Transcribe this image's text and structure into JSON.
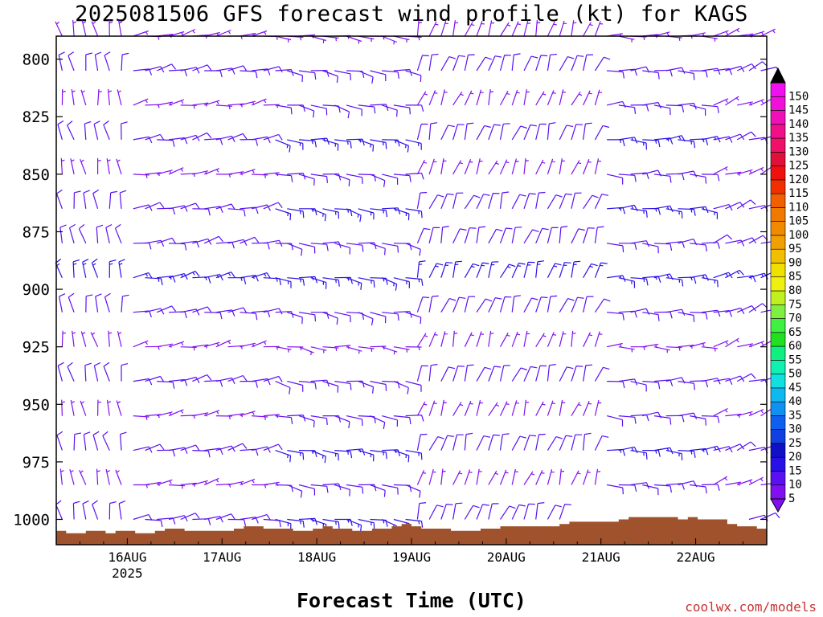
{
  "title": "2025081506 GFS forecast wind profile (kt) for KAGS",
  "credit": "coolwx.com/models",
  "chart_data": {
    "type": "wind-barb time-height section",
    "title": "2025081506 GFS forecast wind profile (kt) for KAGS",
    "xlabel": "Forecast Time (UTC)",
    "ylabel": "",
    "x_ticks": [
      {
        "label": "16AUG",
        "sub": "2025",
        "hour": 18
      },
      {
        "label": "17AUG",
        "sub": "",
        "hour": 42
      },
      {
        "label": "18AUG",
        "sub": "",
        "hour": 66
      },
      {
        "label": "19AUG",
        "sub": "",
        "hour": 90
      },
      {
        "label": "20AUG",
        "sub": "",
        "hour": 114
      },
      {
        "label": "21AUG",
        "sub": "",
        "hour": 138
      },
      {
        "label": "22AUG",
        "sub": "",
        "hour": 162
      }
    ],
    "x_range_hours": [
      0,
      180
    ],
    "y_ticks": [
      800,
      825,
      850,
      875,
      900,
      925,
      950,
      975,
      1000
    ],
    "y_range_hPa": [
      790,
      1011
    ],
    "pressure_levels_hPa": [
      790,
      805,
      820,
      835,
      850,
      865,
      880,
      895,
      910,
      925,
      940,
      955,
      970,
      985,
      1000
    ],
    "time_step_hours": 3,
    "colorbar": {
      "values": [
        5,
        10,
        15,
        20,
        25,
        30,
        35,
        40,
        45,
        50,
        55,
        60,
        65,
        70,
        75,
        80,
        85,
        90,
        95,
        100,
        105,
        110,
        115,
        120,
        125,
        130,
        135,
        140,
        145,
        150
      ],
      "colors": [
        "#8010f0",
        "#5a10f0",
        "#2a10e8",
        "#1010c8",
        "#1040e0",
        "#1060f0",
        "#1090f0",
        "#10b8f0",
        "#10e0e0",
        "#10f0b0",
        "#10f080",
        "#20e020",
        "#40f040",
        "#80f040",
        "#c0f020",
        "#f0f010",
        "#f0e000",
        "#f0c000",
        "#f0a000",
        "#f08a00",
        "#f07a00",
        "#f06000",
        "#f03000",
        "#f01010",
        "#e0103a",
        "#f0106a",
        "#f0108a",
        "#f010b8",
        "#f010d8",
        "#f010f0"
      ]
    },
    "terrain_color": "#a0522d",
    "surface_pressure_hPa": [
      1005,
      1006,
      1006,
      1005,
      1005,
      1006,
      1005,
      1005,
      1006,
      1006,
      1005,
      1004,
      1004,
      1005,
      1005,
      1005,
      1005,
      1005,
      1004,
      1003,
      1003,
      1004,
      1004,
      1004,
      1005,
      1005,
      1004,
      1003,
      1004,
      1004,
      1005,
      1005,
      1004,
      1004,
      1003,
      1002,
      1003,
      1004,
      1004,
      1004,
      1005,
      1005,
      1005,
      1004,
      1004,
      1003,
      1003,
      1003,
      1003,
      1003,
      1003,
      1002,
      1001,
      1001,
      1001,
      1001,
      1001,
      1000,
      999,
      999,
      999,
      999,
      999,
      1000,
      999,
      1000,
      1000,
      1000,
      1002,
      1003,
      1003,
      1004
    ],
    "wind_regimes": [
      {
        "from_hour": 0,
        "to_hour": 18,
        "direction_deg": 350,
        "speed_kt": 10
      },
      {
        "from_hour": 18,
        "to_hour": 54,
        "direction_deg": 80,
        "speed_kt": 10
      },
      {
        "from_hour": 54,
        "to_hour": 90,
        "direction_deg": 100,
        "speed_kt": 12
      },
      {
        "from_hour": 90,
        "to_hour": 138,
        "direction_deg": 20,
        "speed_kt": 10
      },
      {
        "from_hour": 138,
        "to_hour": 165,
        "direction_deg": 90,
        "speed_kt": 12
      },
      {
        "from_hour": 165,
        "to_hour": 180,
        "direction_deg": 70,
        "speed_kt": 10
      }
    ]
  }
}
